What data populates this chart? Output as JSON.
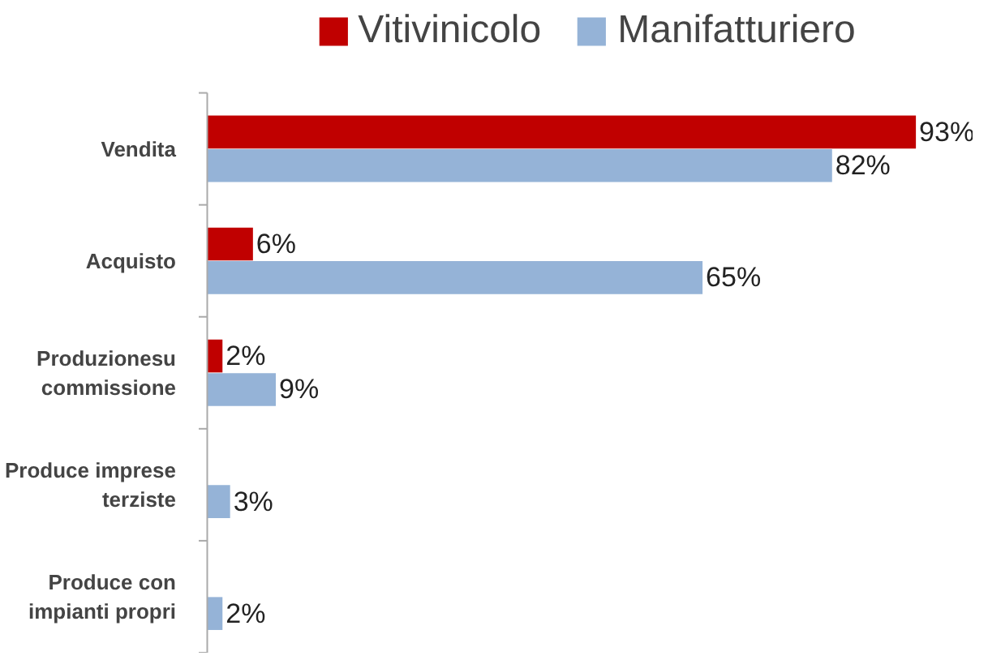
{
  "chart_data": {
    "type": "bar",
    "orientation": "horizontal",
    "categories": [
      "Vendita",
      "Acquisto",
      "Produzionesu\ncommissione",
      "Produce imprese\nterziste",
      "Produce con\nimpianti propri"
    ],
    "series": [
      {
        "name": "Vitivinicolo",
        "color": "#c00000",
        "values": [
          93,
          6,
          2,
          null,
          null
        ],
        "value_labels": [
          "93%",
          "6%",
          "2%",
          null,
          null
        ]
      },
      {
        "name": "Manifatturiero",
        "color": "#95b3d7",
        "values": [
          82,
          65,
          9,
          3,
          2
        ],
        "value_labels": [
          "82%",
          "65%",
          "9%",
          "3%",
          "2%"
        ]
      }
    ],
    "legend": "top",
    "grid": false
  }
}
